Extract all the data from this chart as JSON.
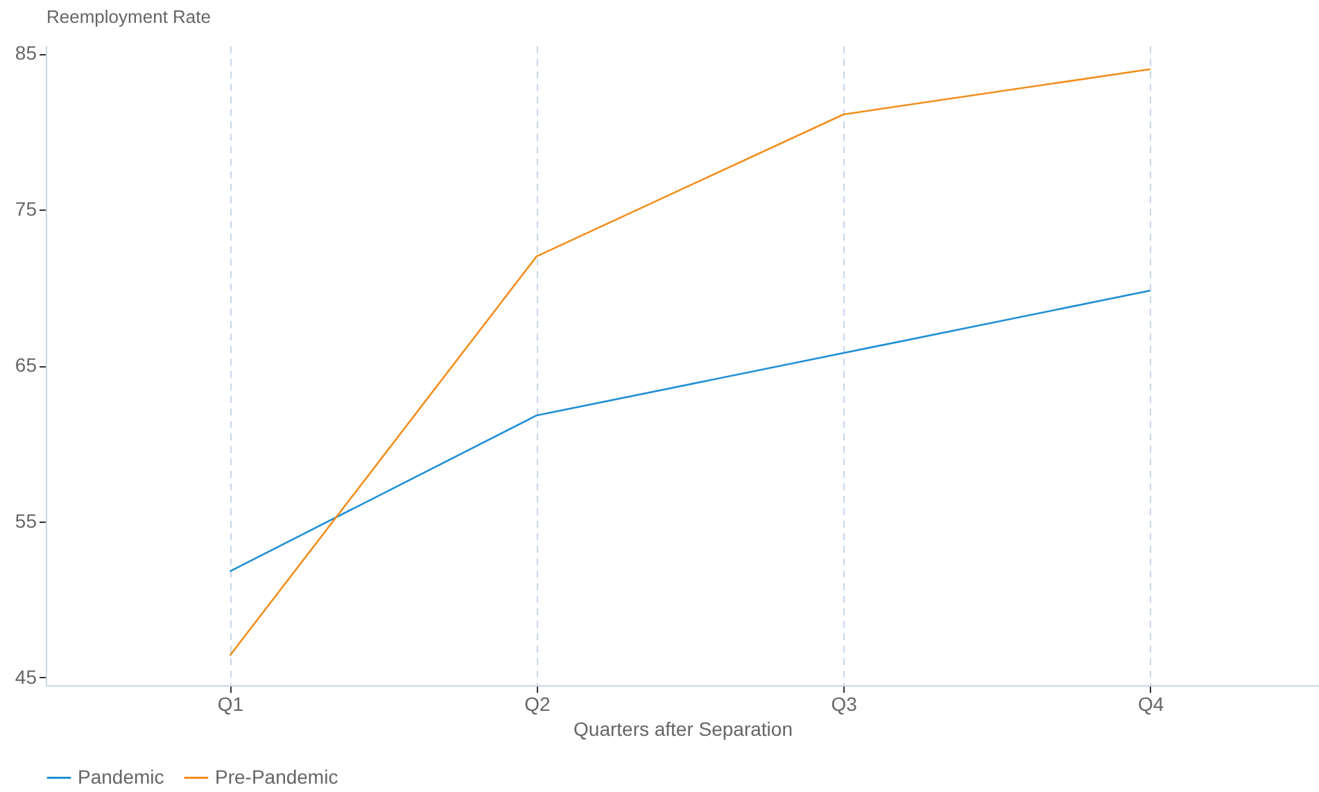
{
  "chart_data": {
    "type": "line",
    "xlabel": "Quarters after Separation",
    "ylabel": "Reemployment Rate",
    "categories": [
      "Q1",
      "Q2",
      "Q3",
      "Q4"
    ],
    "series": [
      {
        "name": "Pandemic",
        "color": "#1f8fd6",
        "values": [
          51.8,
          61.8,
          65.8,
          69.8
        ]
      },
      {
        "name": "Pre-Pandemic",
        "color": "#f28e1c",
        "values": [
          46.4,
          72.0,
          81.1,
          84.0
        ]
      }
    ],
    "ylim": [
      44.5,
      85.5
    ],
    "yticks": [
      45,
      55,
      65,
      75,
      85
    ],
    "grid": "x",
    "legend": "bottom",
    "marker": "none",
    "line_style": "solid"
  }
}
